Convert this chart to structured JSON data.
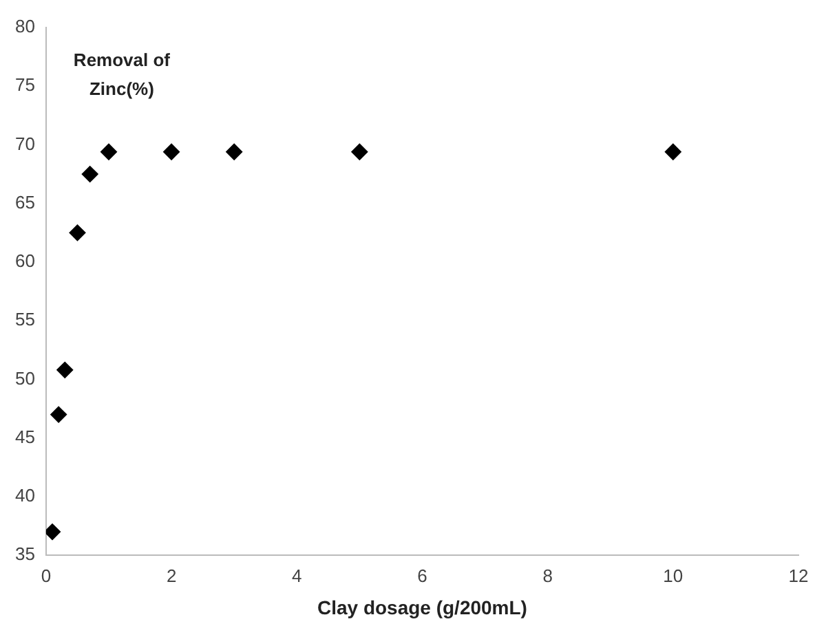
{
  "chart_data": {
    "type": "scatter",
    "ylabel": "Removal of\nZinc(%)",
    "xlabel": "Clay dosage (g/200mL)",
    "x": [
      0.1,
      0.2,
      0.3,
      0.5,
      0.7,
      1,
      2,
      3,
      5,
      10
    ],
    "series": [
      {
        "color": "#000000",
        "values": [
          37,
          47,
          50.8,
          62.5,
          67.5,
          69.4,
          69.4,
          69.4,
          69.4,
          69.4
        ]
      }
    ],
    "xlim": [
      0,
      12
    ],
    "xticks": [
      0,
      2,
      4,
      6,
      8,
      10,
      12
    ],
    "ylim": [
      35,
      80
    ],
    "yticks": [
      35,
      40,
      45,
      50,
      55,
      60,
      65,
      70,
      75,
      80
    ],
    "grid": false,
    "legend": false,
    "marker": "diamond"
  }
}
